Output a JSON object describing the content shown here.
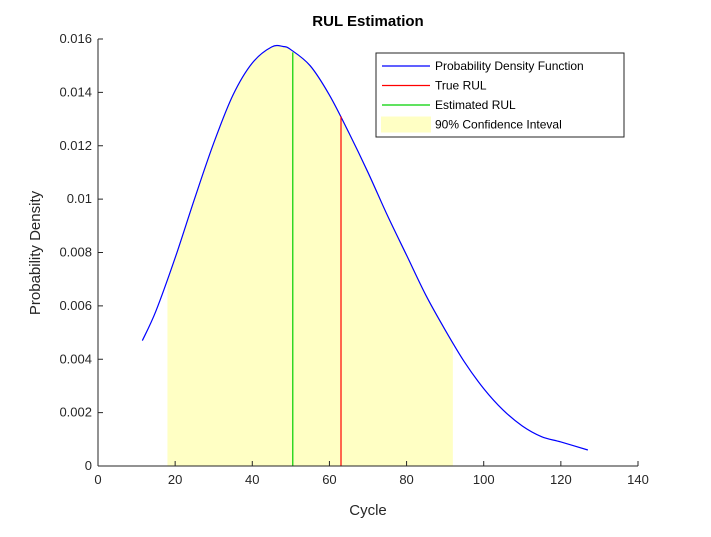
{
  "chart_data": {
    "type": "line",
    "title": "RUL Estimation",
    "xlabel": "Cycle",
    "ylabel": "Probability Density",
    "xlim": [
      0,
      140
    ],
    "ylim": [
      0,
      0.016
    ],
    "xticks": [
      0,
      20,
      40,
      60,
      80,
      100,
      120,
      140
    ],
    "yticks": [
      0,
      0.002,
      0.004,
      0.006,
      0.008,
      0.01,
      0.012,
      0.014,
      0.016
    ],
    "ytick_labels": [
      "0",
      "0.002",
      "0.004",
      "0.006",
      "0.008",
      "0.01",
      "0.012",
      "0.014",
      "0.016"
    ],
    "grid": false,
    "legend_position": "top-right",
    "legend": [
      {
        "label": "Probability Density Function",
        "kind": "line",
        "color": "#0000ff"
      },
      {
        "label": "True RUL",
        "kind": "line",
        "color": "#ff0000"
      },
      {
        "label": "Estimated RUL",
        "kind": "line",
        "color": "#00d000"
      },
      {
        "label": "90% Confidence Inteval",
        "kind": "patch",
        "color": "#ffffc4"
      }
    ],
    "pdf": {
      "name": "Probability Density Function",
      "color": "#0000ff",
      "x": [
        11.5,
        15,
        20,
        25,
        30,
        35,
        40,
        45,
        48,
        50,
        55,
        60,
        65,
        70,
        75,
        80,
        85,
        90,
        95,
        100,
        105,
        110,
        115,
        120,
        127
      ],
      "y": [
        0.0047,
        0.0058,
        0.0078,
        0.01,
        0.0121,
        0.0139,
        0.0151,
        0.0157,
        0.01572,
        0.0156,
        0.015,
        0.0139,
        0.0125,
        0.011,
        0.0094,
        0.0079,
        0.0064,
        0.0051,
        0.0039,
        0.0029,
        0.0021,
        0.0015,
        0.0011,
        0.0009,
        0.0006
      ]
    },
    "confidence_interval": {
      "name": "90% Confidence Inteval",
      "color": "#ffffc4",
      "x_start": 18,
      "x_end": 92
    },
    "true_rul": {
      "name": "True RUL",
      "color": "#ff0000",
      "x": 63,
      "y_top": 0.0131
    },
    "estimated_rul": {
      "name": "Estimated RUL",
      "color": "#00d000",
      "x": 50.5,
      "y_top": 0.0155
    }
  }
}
